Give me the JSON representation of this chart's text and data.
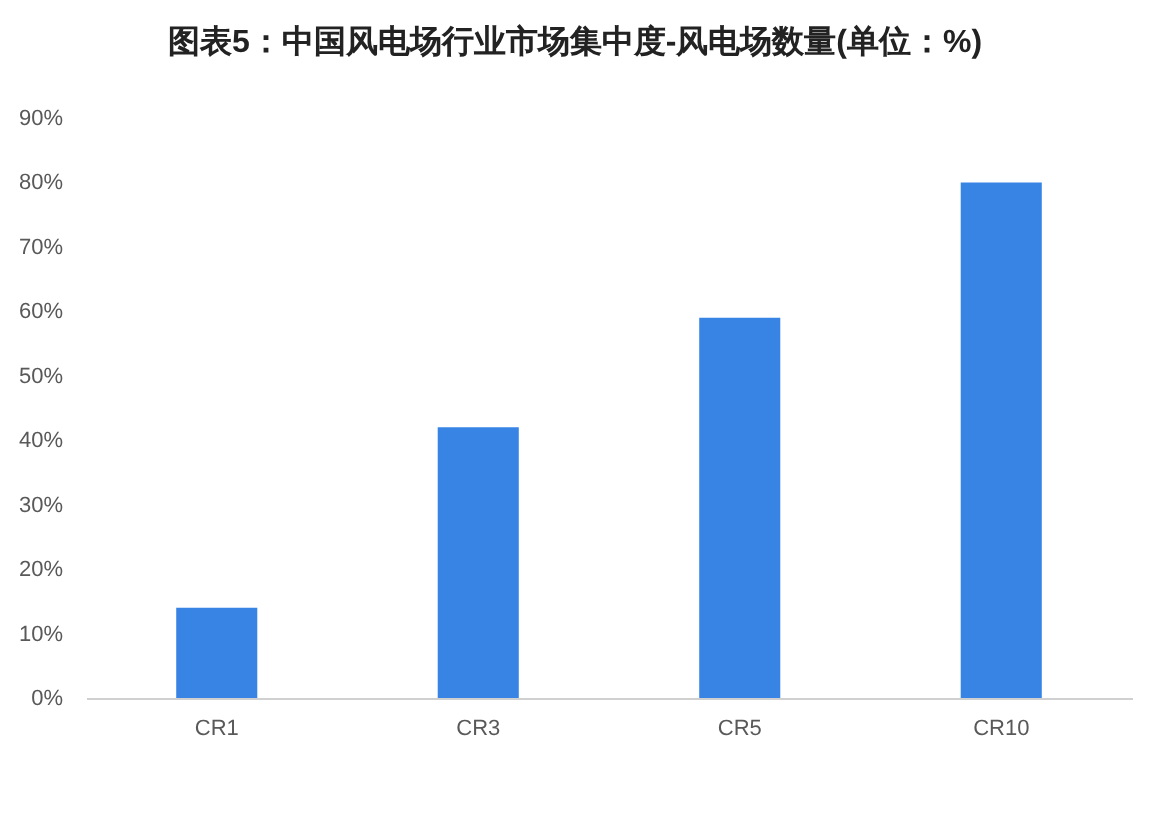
{
  "chart_data": {
    "type": "bar",
    "title": "图表5：中国风电场行业市场集中度-风电场数量(单位：%)",
    "categories": [
      "CR1",
      "CR3",
      "CR5",
      "CR10"
    ],
    "values": [
      14,
      42,
      59,
      80
    ],
    "color": "#3784e5",
    "ylim": [
      0,
      90
    ],
    "yticks": [
      {
        "value": 0,
        "label": "0%"
      },
      {
        "value": 10,
        "label": "10%"
      },
      {
        "value": 20,
        "label": "20%"
      },
      {
        "value": 30,
        "label": "30%"
      },
      {
        "value": 40,
        "label": "40%"
      },
      {
        "value": 50,
        "label": "50%"
      },
      {
        "value": 60,
        "label": "60%"
      },
      {
        "value": 70,
        "label": "70%"
      },
      {
        "value": 80,
        "label": "80%"
      },
      {
        "value": 90,
        "label": "90%"
      }
    ],
    "grid": false
  }
}
